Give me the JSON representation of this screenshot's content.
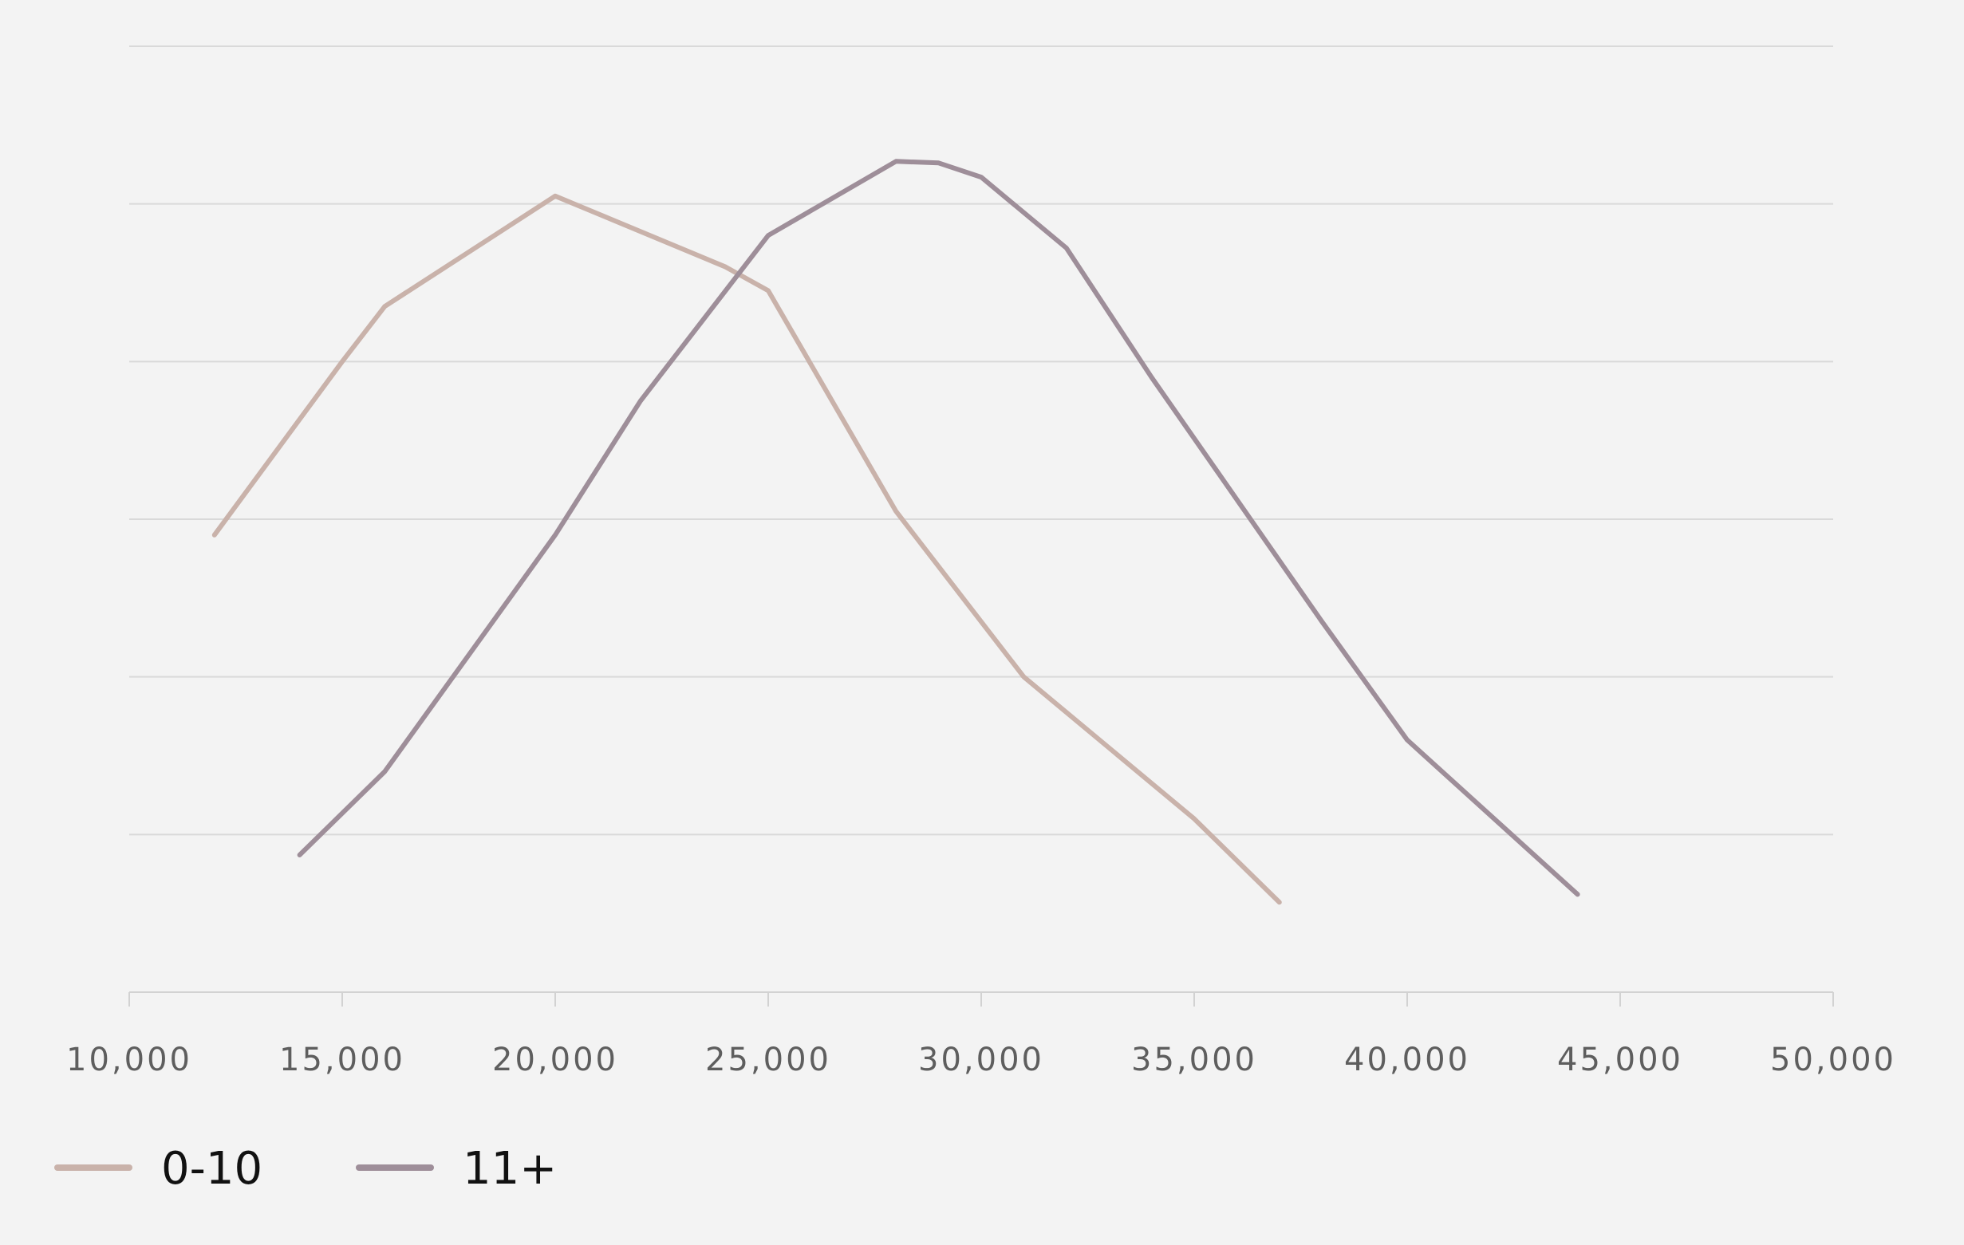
{
  "chart_data": {
    "type": "line",
    "title": "",
    "xlabel": "",
    "ylabel": "",
    "xlim": [
      10000,
      50000
    ],
    "ylim": [
      0,
      6
    ],
    "x_ticks": [
      "10,000",
      "15,000",
      "20,000",
      "25,000",
      "30,000",
      "35,000",
      "40,000",
      "45,000",
      "50,000"
    ],
    "grid": "horizontal",
    "legend_position": "bottom-left",
    "series": [
      {
        "name": "0-10",
        "color": "#c9b2aa",
        "points": [
          [
            12000,
            2.9
          ],
          [
            15000,
            4.0
          ],
          [
            16000,
            4.35
          ],
          [
            20000,
            5.05
          ],
          [
            24000,
            4.6
          ],
          [
            25000,
            4.45
          ],
          [
            28000,
            3.05
          ],
          [
            31000,
            2.0
          ],
          [
            35000,
            1.1
          ],
          [
            37000,
            0.57
          ]
        ]
      },
      {
        "name": "11+",
        "color": "#9e8e99",
        "points": [
          [
            14000,
            0.87
          ],
          [
            16000,
            1.4
          ],
          [
            20000,
            2.9
          ],
          [
            22000,
            3.75
          ],
          [
            25000,
            4.8
          ],
          [
            28000,
            5.27
          ],
          [
            29000,
            5.26
          ],
          [
            30000,
            5.17
          ],
          [
            32000,
            4.72
          ],
          [
            34000,
            3.9
          ],
          [
            38000,
            2.35
          ],
          [
            40000,
            1.6
          ],
          [
            44000,
            0.62
          ]
        ]
      }
    ]
  }
}
